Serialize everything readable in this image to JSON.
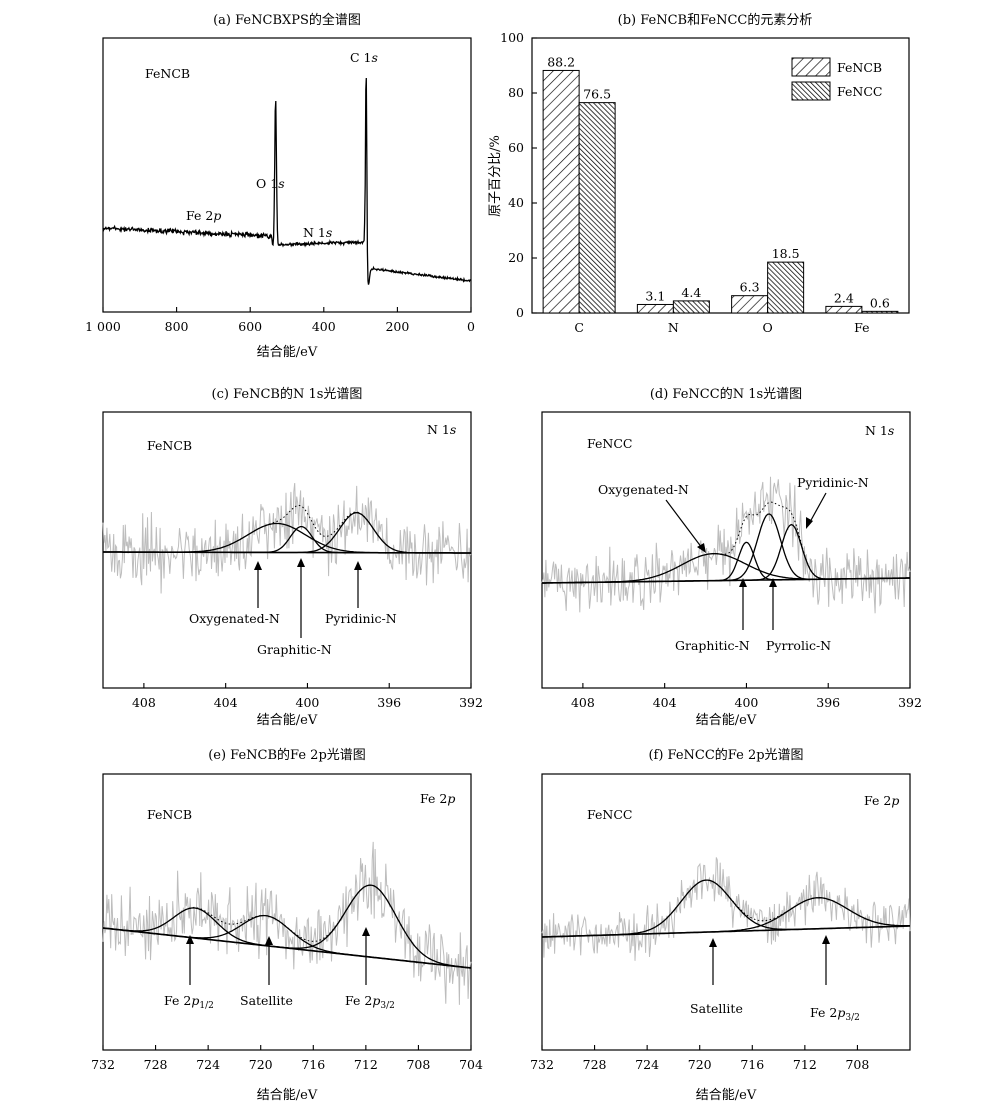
{
  "axis_label_be": "结合能/eV",
  "chart_data": [
    {
      "id": "a",
      "type": "line",
      "title": "(a) FeNCBXPS的全谱图",
      "sample_label": "FeNCB",
      "xlabel": "结合能/eV",
      "xlim": [
        1000,
        0
      ],
      "xticks": [
        1000,
        800,
        600,
        400,
        200,
        0
      ],
      "xtick_labels": [
        "1 000",
        "800",
        "600",
        "400",
        "200",
        "0"
      ],
      "annotations": [
        "C 1s",
        "O 1s",
        "Fe 2p",
        "N 1s"
      ],
      "peaks": [
        {
          "label": "C 1s",
          "x": 285
        },
        {
          "label": "O 1s",
          "x": 531
        },
        {
          "label": "N 1s",
          "x": 400
        },
        {
          "label": "Fe 2p",
          "x": 711
        }
      ]
    },
    {
      "id": "b",
      "type": "bar",
      "title": "(b) FeNCB和FeNCC的元素分析",
      "ylabel": "原子百分比/%",
      "ylim": [
        0,
        100
      ],
      "yticks": [
        0,
        20,
        40,
        60,
        80,
        100
      ],
      "categories": [
        "C",
        "N",
        "O",
        "Fe"
      ],
      "series": [
        {
          "name": "FeNCB",
          "values": [
            88.2,
            3.1,
            6.3,
            2.4
          ]
        },
        {
          "name": "FeNCC",
          "values": [
            76.5,
            4.4,
            18.5,
            0.6
          ]
        }
      ],
      "value_labels": [
        [
          "88.2",
          "3.1",
          "6.3",
          "2.4"
        ],
        [
          "76.5",
          "4.4",
          "18.5",
          "0.6"
        ]
      ],
      "legend_position": "top-right"
    },
    {
      "id": "c",
      "type": "line",
      "title": "(c) FeNCB的N 1s光谱图",
      "sample_label": "FeNCB",
      "region_label": "N 1s",
      "xlabel": "结合能/eV",
      "xlim": [
        410,
        392
      ],
      "xticks": [
        408,
        404,
        400,
        396,
        392
      ],
      "components": [
        {
          "name": "Oxygenated-N",
          "center": 401.5
        },
        {
          "name": "Graphitic-N",
          "center": 400.3
        },
        {
          "name": "Pyridinic-N",
          "center": 397.6
        }
      ]
    },
    {
      "id": "d",
      "type": "line",
      "title": "(d) FeNCC的N 1s光谱图",
      "sample_label": "FeNCC",
      "region_label": "N 1s",
      "xlabel": "结合能/eV",
      "xlim": [
        410,
        392
      ],
      "xticks": [
        408,
        404,
        400,
        396,
        392
      ],
      "components": [
        {
          "name": "Oxygenated-N",
          "center": 401.6
        },
        {
          "name": "Graphitic-N",
          "center": 400.0
        },
        {
          "name": "Pyrrolic-N",
          "center": 398.9
        },
        {
          "name": "Pyridinic-N",
          "center": 397.8
        }
      ]
    },
    {
      "id": "e",
      "type": "line",
      "title": "(e) FeNCB的Fe 2p光谱图",
      "sample_label": "FeNCB",
      "region_label": "Fe 2p",
      "xlabel": "结合能/eV",
      "xlim": [
        732,
        704
      ],
      "xticks": [
        732,
        728,
        724,
        720,
        716,
        712,
        708,
        704
      ],
      "components": [
        {
          "name": "Fe 2p1/2",
          "center": 725.0
        },
        {
          "name": "Satellite",
          "center": 719.6
        },
        {
          "name": "Fe 2p3/2",
          "center": 711.6
        }
      ]
    },
    {
      "id": "f",
      "type": "line",
      "title": "(f) FeNCC的Fe 2p光谱图",
      "sample_label": "FeNCC",
      "region_label": "Fe 2p",
      "xlabel": "结合能/eV",
      "xlim": [
        732,
        704
      ],
      "xticks": [
        732,
        728,
        724,
        720,
        716,
        712,
        708
      ],
      "components": [
        {
          "name": "Satellite",
          "center": 719.5
        },
        {
          "name": "Fe 2p3/2",
          "center": 711.0
        }
      ]
    }
  ]
}
